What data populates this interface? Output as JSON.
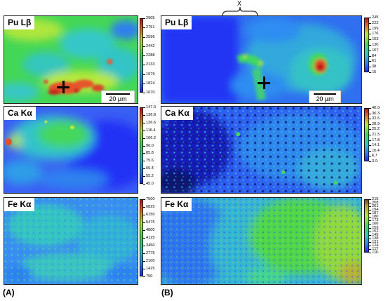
{
  "panels": [
    {
      "id": "A",
      "label": "(A)",
      "maps": [
        {
          "element": "Pu Lβ",
          "colors": [
            "#1a2bff",
            "#2f7ff0",
            "#30c9c0",
            "#40d955",
            "#b8e83a",
            "#e4502c",
            "#b51414"
          ],
          "colorbar_ticks": [
            "2905",
            "2751",
            "2596",
            "2442",
            "2288",
            "2133",
            "1979",
            "1824",
            "1670"
          ],
          "scalebar": "20 µm",
          "has_cross": true
        },
        {
          "element": "Ca Kα",
          "colors": [
            "#1a2bff",
            "#2f7ff0",
            "#30c9c0",
            "#40d955",
            "#b8e83a",
            "#e4502c",
            "#b51414"
          ],
          "colorbar_ticks": [
            "147.0",
            "136.8",
            "126.6",
            "116.4",
            "106.2",
            "96.0",
            "85.8",
            "75.6",
            "65.4",
            "55.2",
            "45.0"
          ]
        },
        {
          "element": "Fe Kα",
          "colors": [
            "#1a2bff",
            "#2f7ff0",
            "#30c9c0",
            "#40d955",
            "#b8e83a",
            "#e4502c",
            "#b51414"
          ],
          "colorbar_ticks": [
            "7500",
            "6825",
            "6150",
            "5475",
            "4800",
            "4125",
            "3450",
            "2775",
            "2100",
            "1425",
            "750"
          ]
        }
      ]
    },
    {
      "id": "B",
      "label": "(B)",
      "region_marker": "X",
      "maps": [
        {
          "element": "Pu Lβ",
          "colors": [
            "#1a2bff",
            "#2f7ff0",
            "#30c9c0",
            "#40d955",
            "#b8e83a",
            "#e4502c",
            "#b51414"
          ],
          "colorbar_ticks": [
            "245",
            "222",
            "199",
            "176",
            "153",
            "130",
            "107",
            "84",
            "61",
            "38",
            "15"
          ],
          "scalebar": "20 µm",
          "has_cross": true
        },
        {
          "element": "Ca Kα",
          "colors": [
            "#1a2bff",
            "#2f7ff0",
            "#30c9c0",
            "#40d955",
            "#b8e83a",
            "#e4502c",
            "#b51414"
          ],
          "colorbar_ticks": [
            "40.0",
            "36.3",
            "32.6",
            "28.9",
            "25.2",
            "21.5",
            "17.8",
            "14.1",
            "10.4",
            "6.7",
            "3.0"
          ]
        },
        {
          "element": "Fe Kα",
          "colors": [
            "#1a2bff",
            "#2f7ff0",
            "#30c9c0",
            "#40d955",
            "#b8e83a",
            "#e4502c",
            "#b51414"
          ],
          "colorbar_ticks": [
            "215",
            "208",
            "201",
            "194",
            "187",
            "180",
            "173",
            "166",
            "159",
            "152",
            "145",
            "138",
            "131",
            "124",
            "117",
            "110"
          ]
        }
      ]
    }
  ]
}
